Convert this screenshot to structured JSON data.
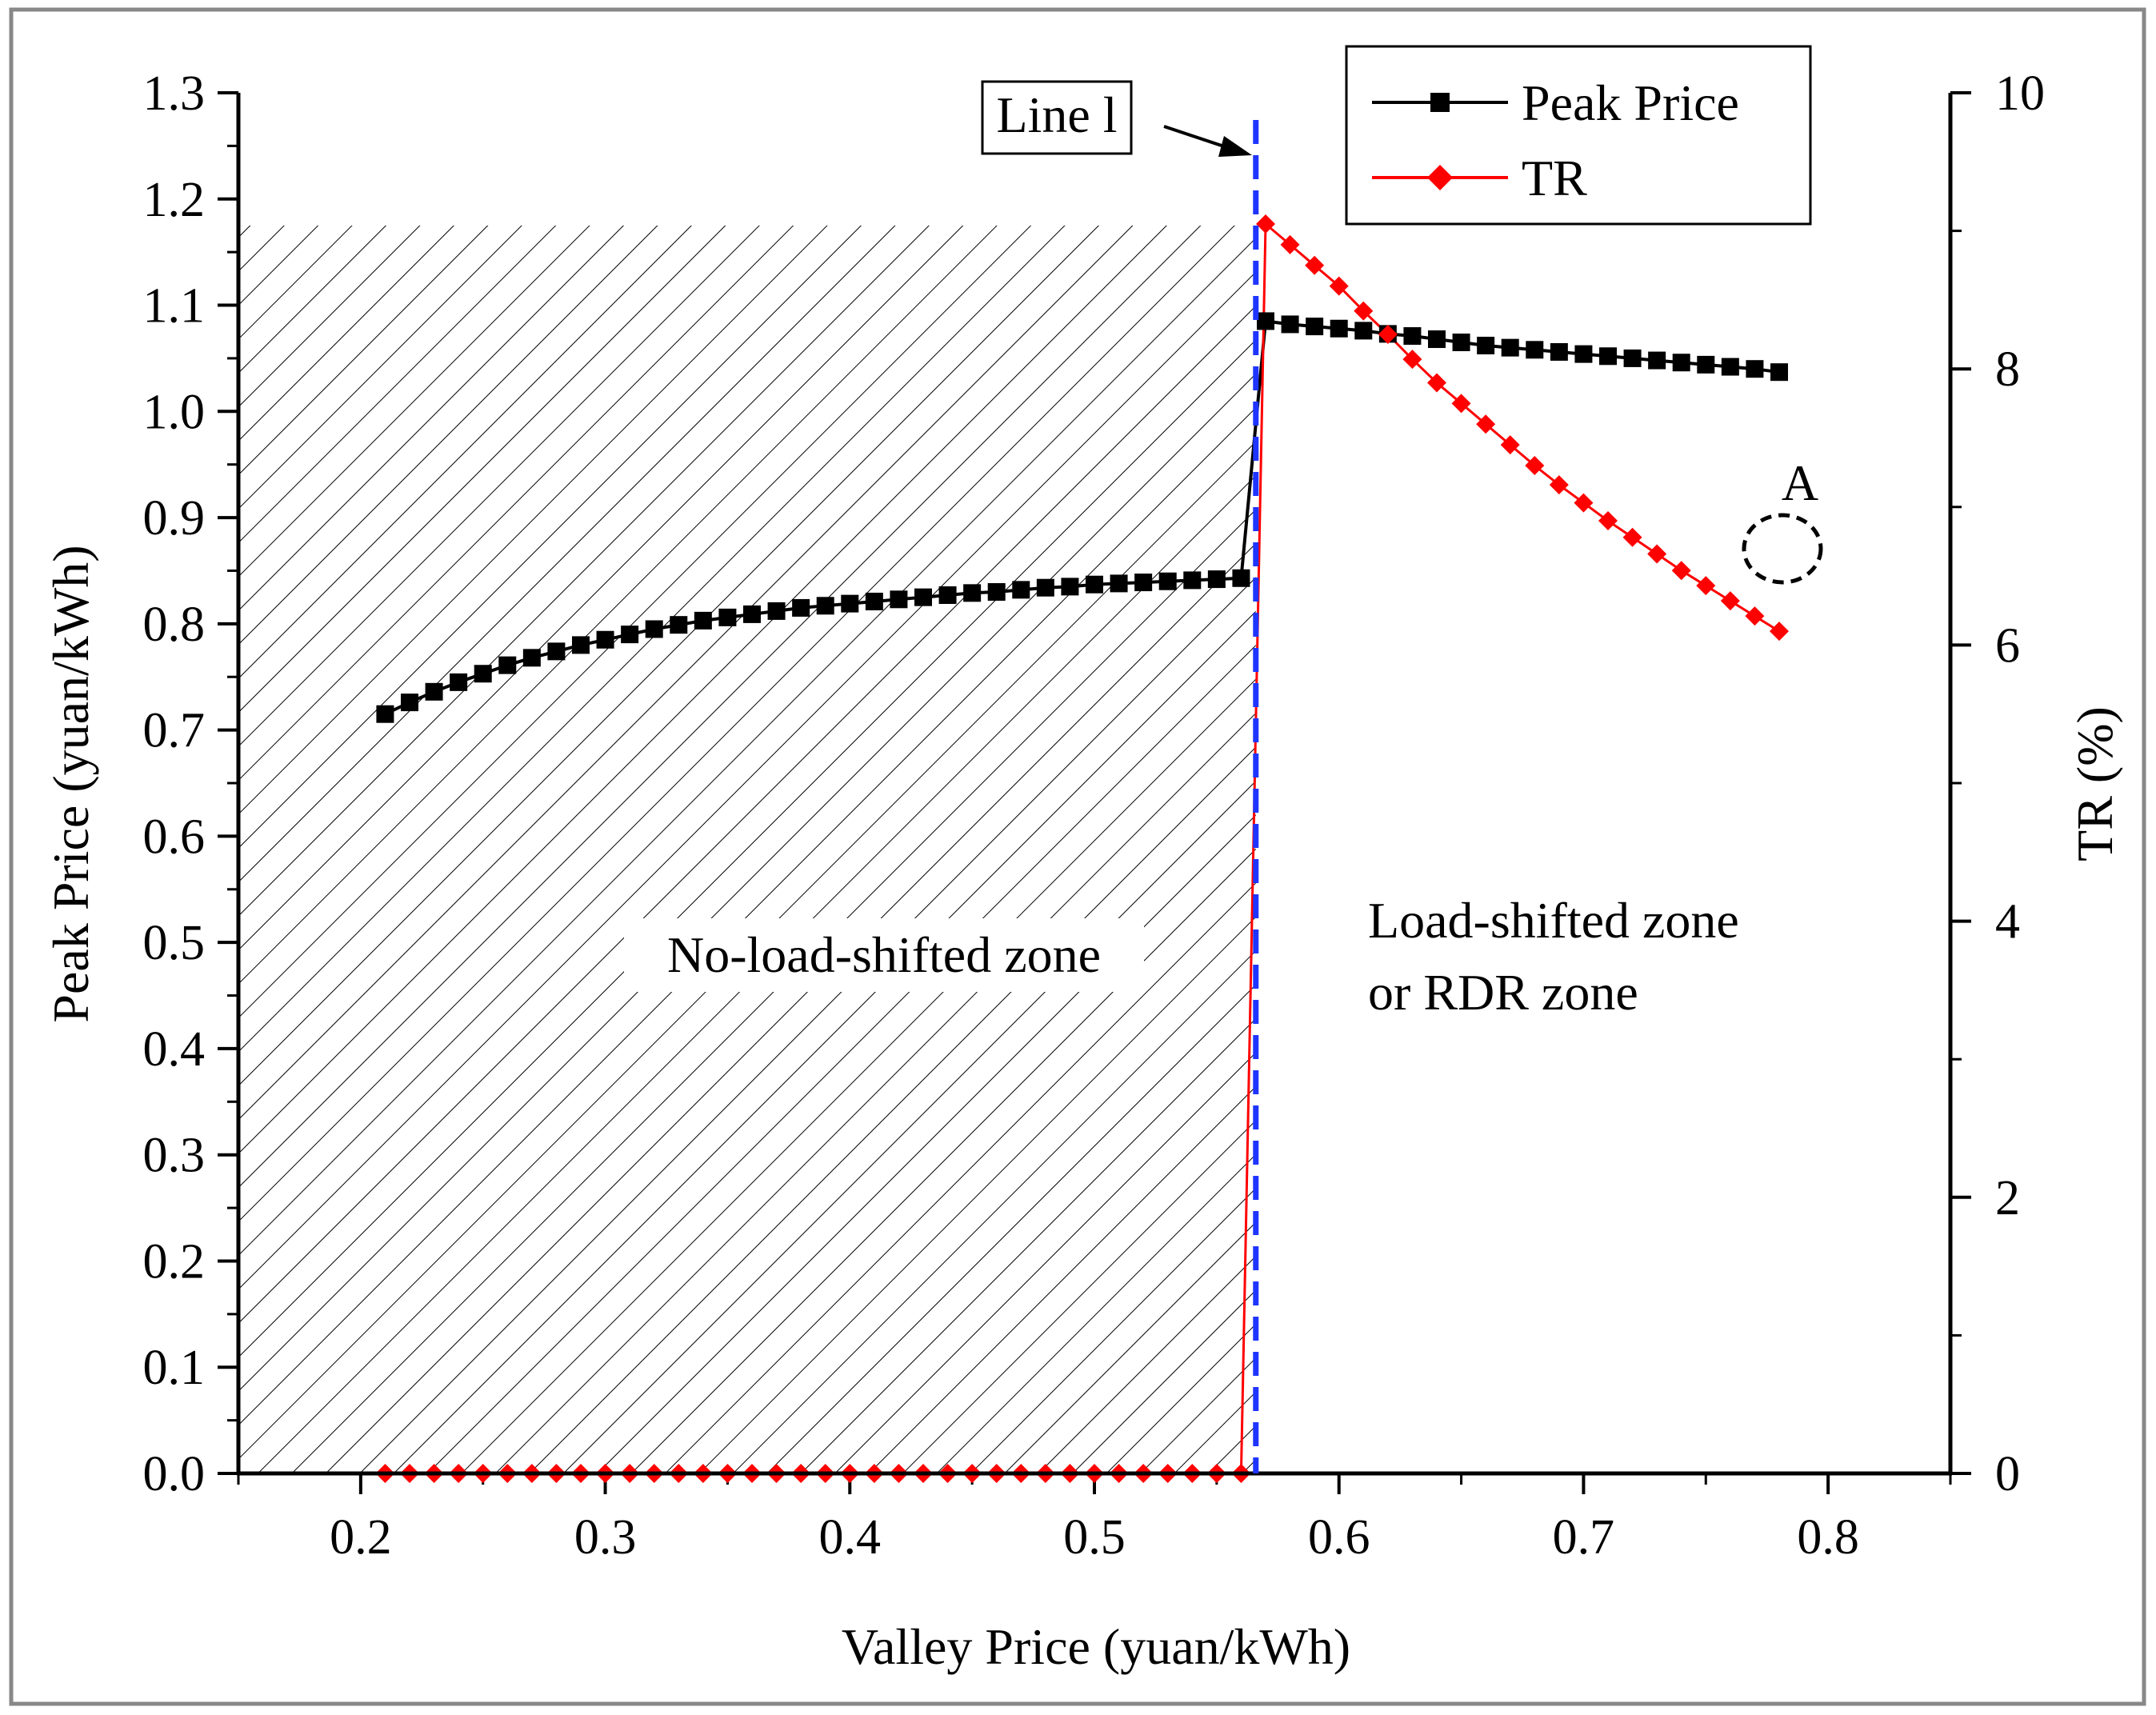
{
  "chart_data": {
    "type": "line",
    "title": "",
    "xlabel": "Valley Price (yuan/kWh)",
    "ylabel": "Peak Price (yuan/kWh)",
    "y2label": "TR (%)",
    "xlim": [
      0.15,
      0.85
    ],
    "ylim": [
      0.0,
      1.3
    ],
    "y2lim": [
      0,
      10
    ],
    "xticks": [
      "0.2",
      "0.3",
      "0.4",
      "0.5",
      "0.6",
      "0.7",
      "0.8"
    ],
    "yticks": [
      "0.0",
      "0.1",
      "0.2",
      "0.3",
      "0.4",
      "0.5",
      "0.6",
      "0.7",
      "0.8",
      "0.9",
      "1.0",
      "1.1",
      "1.2",
      "1.3"
    ],
    "y2ticks": [
      "0",
      "2",
      "4",
      "6",
      "8",
      "10"
    ],
    "grid": false,
    "legend_position": "top-right",
    "series": [
      {
        "name": "Peak Price",
        "axis": "left",
        "color": "#000000",
        "marker": "square",
        "x": [
          0.21,
          0.22,
          0.23,
          0.24,
          0.25,
          0.26,
          0.27,
          0.28,
          0.29,
          0.3,
          0.31,
          0.32,
          0.33,
          0.34,
          0.35,
          0.36,
          0.37,
          0.38,
          0.39,
          0.4,
          0.41,
          0.42,
          0.43,
          0.44,
          0.45,
          0.46,
          0.47,
          0.48,
          0.49,
          0.5,
          0.51,
          0.52,
          0.53,
          0.54,
          0.55,
          0.56,
          0.57,
          0.58,
          0.59,
          0.6,
          0.61,
          0.62,
          0.63,
          0.64,
          0.65,
          0.66,
          0.67,
          0.68,
          0.69,
          0.7,
          0.71,
          0.72,
          0.73,
          0.74,
          0.75,
          0.76,
          0.77,
          0.78
        ],
        "values": [
          0.715,
          0.726,
          0.736,
          0.745,
          0.753,
          0.761,
          0.768,
          0.774,
          0.78,
          0.785,
          0.79,
          0.795,
          0.799,
          0.803,
          0.806,
          0.809,
          0.812,
          0.815,
          0.817,
          0.819,
          0.821,
          0.823,
          0.825,
          0.827,
          0.829,
          0.83,
          0.832,
          0.834,
          0.835,
          0.837,
          0.838,
          0.839,
          0.84,
          0.841,
          0.842,
          0.843,
          1.085,
          1.082,
          1.08,
          1.078,
          1.076,
          1.073,
          1.071,
          1.068,
          1.065,
          1.062,
          1.06,
          1.058,
          1.056,
          1.054,
          1.052,
          1.05,
          1.048,
          1.046,
          1.044,
          1.042,
          1.04,
          1.037
        ]
      },
      {
        "name": "TR",
        "axis": "right",
        "color": "#ff0000",
        "marker": "diamond",
        "x": [
          0.21,
          0.22,
          0.23,
          0.24,
          0.25,
          0.26,
          0.27,
          0.28,
          0.29,
          0.3,
          0.31,
          0.32,
          0.33,
          0.34,
          0.35,
          0.36,
          0.37,
          0.38,
          0.39,
          0.4,
          0.41,
          0.42,
          0.43,
          0.44,
          0.45,
          0.46,
          0.47,
          0.48,
          0.49,
          0.5,
          0.51,
          0.52,
          0.53,
          0.54,
          0.55,
          0.56,
          0.57,
          0.58,
          0.59,
          0.6,
          0.61,
          0.62,
          0.63,
          0.64,
          0.65,
          0.66,
          0.67,
          0.68,
          0.69,
          0.7,
          0.71,
          0.72,
          0.73,
          0.74,
          0.75,
          0.76,
          0.77,
          0.78
        ],
        "values": [
          0,
          0,
          0,
          0,
          0,
          0,
          0,
          0,
          0,
          0,
          0,
          0,
          0,
          0,
          0,
          0,
          0,
          0,
          0,
          0,
          0,
          0,
          0,
          0,
          0,
          0,
          0,
          0,
          0,
          0,
          0,
          0,
          0,
          0,
          0,
          0,
          9.05,
          8.9,
          8.75,
          8.6,
          8.42,
          8.25,
          8.07,
          7.9,
          7.75,
          7.6,
          7.45,
          7.3,
          7.16,
          7.03,
          6.9,
          6.78,
          6.66,
          6.54,
          6.43,
          6.32,
          6.21,
          6.1
        ]
      }
    ],
    "shaded_region": {
      "x_from": 0.15,
      "x_to": 0.566,
      "y_top": 1.175,
      "label": "No-load-shifted zone"
    },
    "vertical_line": {
      "x": 0.566,
      "label": "Line l",
      "color": "#1f35ff"
    },
    "annotations": [
      {
        "text": "Load-shifted zone"
      },
      {
        "text": "or RDR zone"
      },
      {
        "text": "A"
      }
    ]
  }
}
